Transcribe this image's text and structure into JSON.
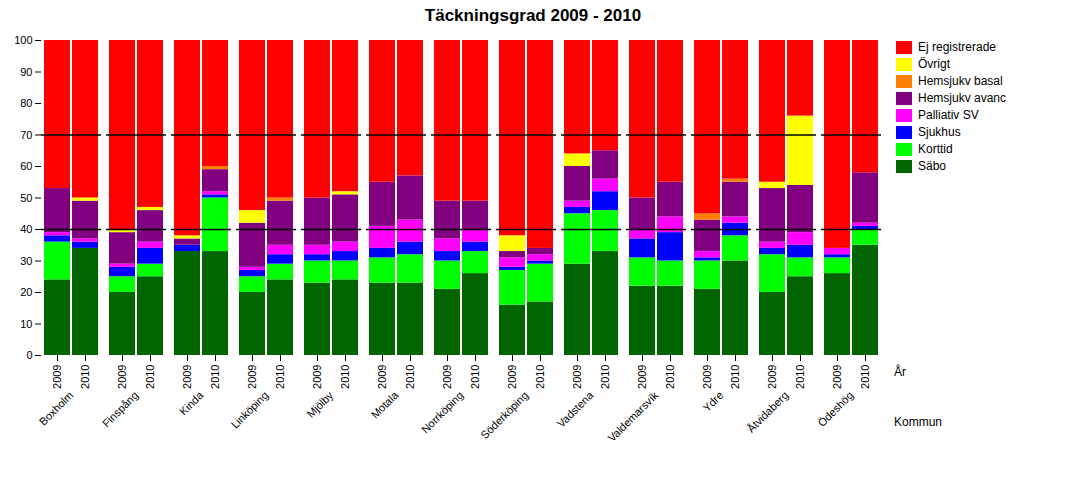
{
  "chart_data": {
    "type": "bar",
    "stacked": true,
    "title": "Täckningsgrad 2009 - 2010",
    "xlabel": "År",
    "group_label": "Kommun",
    "groups": [
      "Boxholm",
      "Finspång",
      "Kinda",
      "Linköping",
      "Mjölby",
      "Motala",
      "Norrköping",
      "Söderköping",
      "Vadstena",
      "Valdemarsvík",
      "Ydre",
      "Åtvidaberg",
      "Ödeshög"
    ],
    "categories": [
      "2009",
      "2010"
    ],
    "series": [
      {
        "name": "Säbo",
        "color": "#006400",
        "values": [
          [
            24,
            34
          ],
          [
            20,
            25
          ],
          [
            33,
            33
          ],
          [
            20,
            24
          ],
          [
            23,
            24
          ],
          [
            23,
            23
          ],
          [
            21,
            26
          ],
          [
            16,
            17
          ],
          [
            29,
            33
          ],
          [
            22,
            22
          ],
          [
            21,
            30
          ],
          [
            20,
            25
          ],
          [
            26,
            35
          ]
        ]
      },
      {
        "name": "Korttid",
        "color": "#00ff00",
        "values": [
          [
            12,
            0
          ],
          [
            5,
            4
          ],
          [
            0,
            17
          ],
          [
            5,
            5
          ],
          [
            7,
            6
          ],
          [
            8,
            9
          ],
          [
            9,
            7
          ],
          [
            11,
            12
          ],
          [
            16,
            13
          ],
          [
            9,
            8
          ],
          [
            9,
            8
          ],
          [
            12,
            6
          ],
          [
            5,
            5
          ]
        ]
      },
      {
        "name": "Sjukhus",
        "color": "#0000ff",
        "values": [
          [
            2,
            2
          ],
          [
            3,
            5
          ],
          [
            2,
            1
          ],
          [
            2,
            3
          ],
          [
            2,
            3
          ],
          [
            3,
            4
          ],
          [
            3,
            3
          ],
          [
            1,
            1
          ],
          [
            2,
            6
          ],
          [
            6,
            9
          ],
          [
            1,
            4
          ],
          [
            2,
            4
          ],
          [
            1,
            1
          ]
        ]
      },
      {
        "name": "Palliativ SV",
        "color": "#ff00ff",
        "values": [
          [
            1,
            1
          ],
          [
            1,
            2
          ],
          [
            0,
            1
          ],
          [
            1,
            3
          ],
          [
            3,
            3
          ],
          [
            7,
            7
          ],
          [
            4,
            4
          ],
          [
            3,
            2
          ],
          [
            2,
            4
          ],
          [
            3,
            5
          ],
          [
            2,
            2
          ],
          [
            2,
            4
          ],
          [
            2,
            1
          ]
        ]
      },
      {
        "name": "Hemsjukv avanc",
        "color": "#800080",
        "values": [
          [
            14,
            12
          ],
          [
            10,
            10
          ],
          [
            2,
            7
          ],
          [
            14,
            14
          ],
          [
            15,
            15
          ],
          [
            14,
            14
          ],
          [
            12,
            9
          ],
          [
            2,
            2
          ],
          [
            11,
            9
          ],
          [
            10,
            11
          ],
          [
            10,
            11
          ],
          [
            17,
            15
          ],
          [
            0,
            16
          ]
        ]
      },
      {
        "name": "Hemsjukv basal",
        "color": "#ff8000",
        "values": [
          [
            0,
            0
          ],
          [
            0,
            0
          ],
          [
            0,
            1
          ],
          [
            0,
            1
          ],
          [
            0,
            0
          ],
          [
            0,
            0
          ],
          [
            0,
            0
          ],
          [
            0,
            0
          ],
          [
            0,
            0
          ],
          [
            0,
            0
          ],
          [
            2,
            1
          ],
          [
            0,
            0
          ],
          [
            0,
            0
          ]
        ]
      },
      {
        "name": "Övrigt",
        "color": "#ffff00",
        "values": [
          [
            0,
            1
          ],
          [
            1,
            1
          ],
          [
            1,
            0
          ],
          [
            4,
            0
          ],
          [
            0,
            1
          ],
          [
            0,
            0
          ],
          [
            0,
            0
          ],
          [
            5,
            0
          ],
          [
            4,
            0
          ],
          [
            0,
            0
          ],
          [
            0,
            0
          ],
          [
            2,
            22
          ],
          [
            0,
            0
          ]
        ]
      },
      {
        "name": "Ej registrerade",
        "color": "#ff0000",
        "values": [
          [
            47,
            50
          ],
          [
            60,
            53
          ],
          [
            62,
            40
          ],
          [
            54,
            50
          ],
          [
            50,
            48
          ],
          [
            45,
            43
          ],
          [
            51,
            51
          ],
          [
            62,
            66
          ],
          [
            36,
            35
          ],
          [
            50,
            45
          ],
          [
            55,
            44
          ],
          [
            45,
            24
          ],
          [
            66,
            42
          ]
        ]
      }
    ],
    "hlines": [
      40,
      70
    ],
    "ylim": [
      0,
      100
    ],
    "yticks": [
      0,
      10,
      20,
      30,
      40,
      50,
      60,
      70,
      80,
      90,
      100
    ],
    "grid": false,
    "legend": "right"
  }
}
